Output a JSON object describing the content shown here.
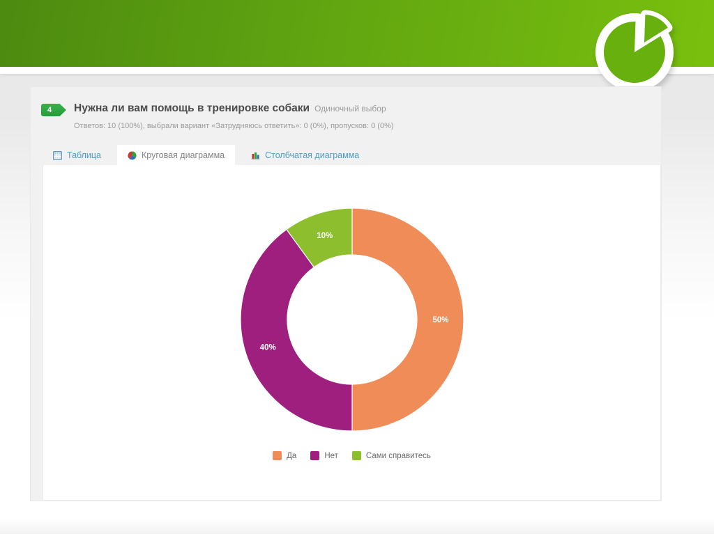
{
  "header": {
    "question_number": "4",
    "question_title": "Нужна ли вам помощь в тренировке собаки",
    "question_type": "Одиночный выбор",
    "stats_line": "Ответов: 10 (100%), выбрали вариант «Затрудняюсь ответить»: 0 (0%), пропусков: 0 (0%)"
  },
  "tabs": [
    {
      "label": "Таблица",
      "active": false
    },
    {
      "label": "Круговая диаграмма",
      "active": true
    },
    {
      "label": "Столбчатая диаграмма",
      "active": false
    }
  ],
  "chart_data": {
    "type": "pie",
    "style": "donut",
    "title": "",
    "categories": [
      "Да",
      "Нет",
      "Сами справитесь"
    ],
    "values": [
      50,
      40,
      10
    ],
    "unit": "%",
    "slice_labels": [
      "50%",
      "40%",
      "10%"
    ],
    "colors": [
      "#F08C58",
      "#9E1F7D",
      "#8CBE2E"
    ],
    "legend_position": "bottom",
    "total_responses": 10
  },
  "colors": {
    "banner_green_dark": "#4c8a10",
    "banner_green_light": "#79c00e",
    "badge_green": "#2ea53e",
    "tab_link_blue": "#4b9dc4",
    "title_gray": "#4c4c4c",
    "muted_gray": "#9a9a9a"
  }
}
